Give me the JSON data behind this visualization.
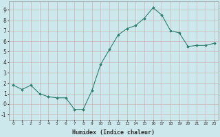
{
  "x": [
    0,
    1,
    2,
    3,
    4,
    5,
    6,
    7,
    8,
    9,
    10,
    11,
    12,
    13,
    14,
    15,
    16,
    17,
    18,
    19,
    20,
    21,
    22,
    23
  ],
  "y": [
    1.8,
    1.4,
    1.8,
    1.0,
    0.7,
    0.6,
    0.6,
    -0.5,
    -0.5,
    1.3,
    3.8,
    5.2,
    6.6,
    7.2,
    7.5,
    8.2,
    9.2,
    8.5,
    7.0,
    6.8,
    5.5,
    5.6,
    5.6,
    5.8
  ],
  "xlabel": "Humidex (Indice chaleur)",
  "xlim": [
    -0.5,
    23.5
  ],
  "ylim": [
    -1.5,
    9.8
  ],
  "yticks": [
    -1,
    0,
    1,
    2,
    3,
    4,
    5,
    6,
    7,
    8,
    9
  ],
  "xticks": [
    0,
    1,
    2,
    3,
    4,
    5,
    6,
    7,
    8,
    9,
    10,
    11,
    12,
    13,
    14,
    15,
    16,
    17,
    18,
    19,
    20,
    21,
    22,
    23
  ],
  "line_color": "#2d7d6e",
  "marker_color": "#2d7d6e",
  "bg_color": "#cde8ec",
  "grid_color": "#b8d4d8",
  "font_color": "#2d2d2d"
}
